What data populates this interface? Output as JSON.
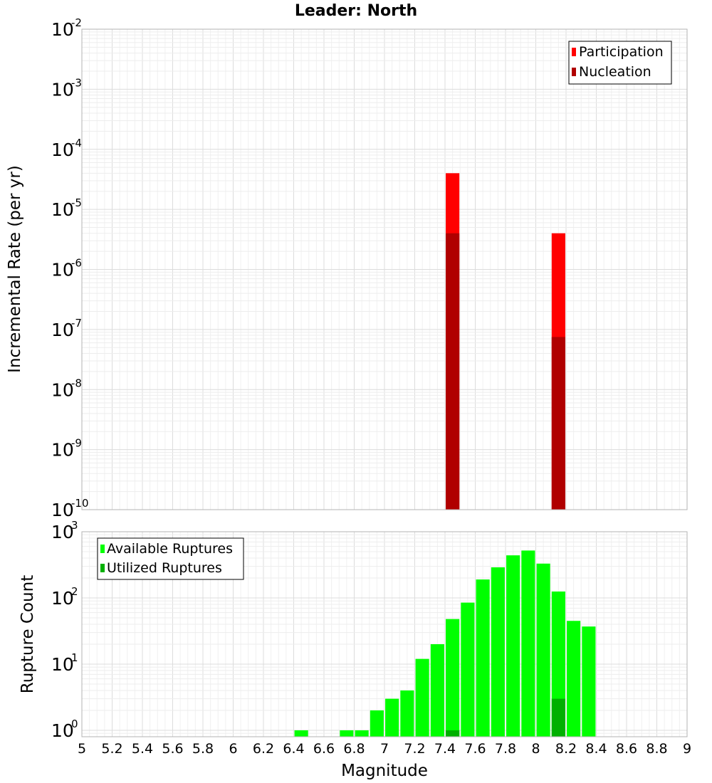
{
  "chart_data": [
    {
      "type": "bar",
      "title": "Leader: North",
      "xlabel": "",
      "ylabel": "Incremental Rate (per yr)",
      "yscale": "log",
      "ylim": [
        1e-10,
        0.01
      ],
      "xlim": [
        5,
        9
      ],
      "x_ticks": [
        "5",
        "5.2",
        "5.4",
        "5.6",
        "5.8",
        "6",
        "6.2",
        "6.4",
        "6.6",
        "6.8",
        "7",
        "7.2",
        "7.4",
        "7.6",
        "7.8",
        "8",
        "8.2",
        "8.4",
        "8.6",
        "8.8",
        "9"
      ],
      "y_ticks": [
        {
          "base": "10",
          "exp": "-10",
          "value": 1e-10
        },
        {
          "base": "10",
          "exp": "-9",
          "value": 1e-09
        },
        {
          "base": "10",
          "exp": "-8",
          "value": 1e-08
        },
        {
          "base": "10",
          "exp": "-7",
          "value": 1e-07
        },
        {
          "base": "10",
          "exp": "-6",
          "value": 1e-06
        },
        {
          "base": "10",
          "exp": "-5",
          "value": 1e-05
        },
        {
          "base": "10",
          "exp": "-4",
          "value": 0.0001
        },
        {
          "base": "10",
          "exp": "-3",
          "value": 0.001
        },
        {
          "base": "10",
          "exp": "-2",
          "value": 0.01
        }
      ],
      "legend_position": "top-right",
      "series": [
        {
          "name": "Participation",
          "color": "#ff0000",
          "x": [
            7.45,
            8.15
          ],
          "values": [
            4e-05,
            4e-06
          ]
        },
        {
          "name": "Nucleation",
          "color": "#b00000",
          "x": [
            7.45,
            8.15
          ],
          "values": [
            4e-06,
            7.5e-08
          ]
        }
      ],
      "bar_width": 0.09
    },
    {
      "type": "bar",
      "title": "",
      "xlabel": "Magnitude",
      "ylabel": "Rupture Count",
      "yscale": "log",
      "ylim": [
        0.8,
        1000
      ],
      "xlim": [
        5,
        9
      ],
      "x_ticks": [
        "5",
        "5.2",
        "5.4",
        "5.6",
        "5.8",
        "6",
        "6.2",
        "6.4",
        "6.6",
        "6.8",
        "7",
        "7.2",
        "7.4",
        "7.6",
        "7.8",
        "8",
        "8.2",
        "8.4",
        "8.6",
        "8.8",
        "9"
      ],
      "y_ticks": [
        {
          "base": "10",
          "exp": "0",
          "value": 1
        },
        {
          "base": "10",
          "exp": "1",
          "value": 10
        },
        {
          "base": "10",
          "exp": "2",
          "value": 100
        },
        {
          "base": "10",
          "exp": "3",
          "value": 1000
        }
      ],
      "legend_position": "top-left",
      "series": [
        {
          "name": "Available Ruptures",
          "color": "#00ff00",
          "x": [
            6.45,
            6.75,
            6.85,
            6.95,
            7.05,
            7.15,
            7.25,
            7.35,
            7.45,
            7.55,
            7.65,
            7.75,
            7.85,
            7.95,
            8.05,
            8.15,
            8.25,
            8.35
          ],
          "values": [
            1,
            1,
            1,
            2,
            3,
            4,
            12,
            20,
            48,
            85,
            190,
            290,
            440,
            520,
            330,
            125,
            45,
            37
          ]
        },
        {
          "name": "Utilized Ruptures",
          "color": "#00b000",
          "x": [
            7.45,
            8.15
          ],
          "values": [
            1,
            3
          ]
        }
      ],
      "bar_width": 0.09
    }
  ]
}
